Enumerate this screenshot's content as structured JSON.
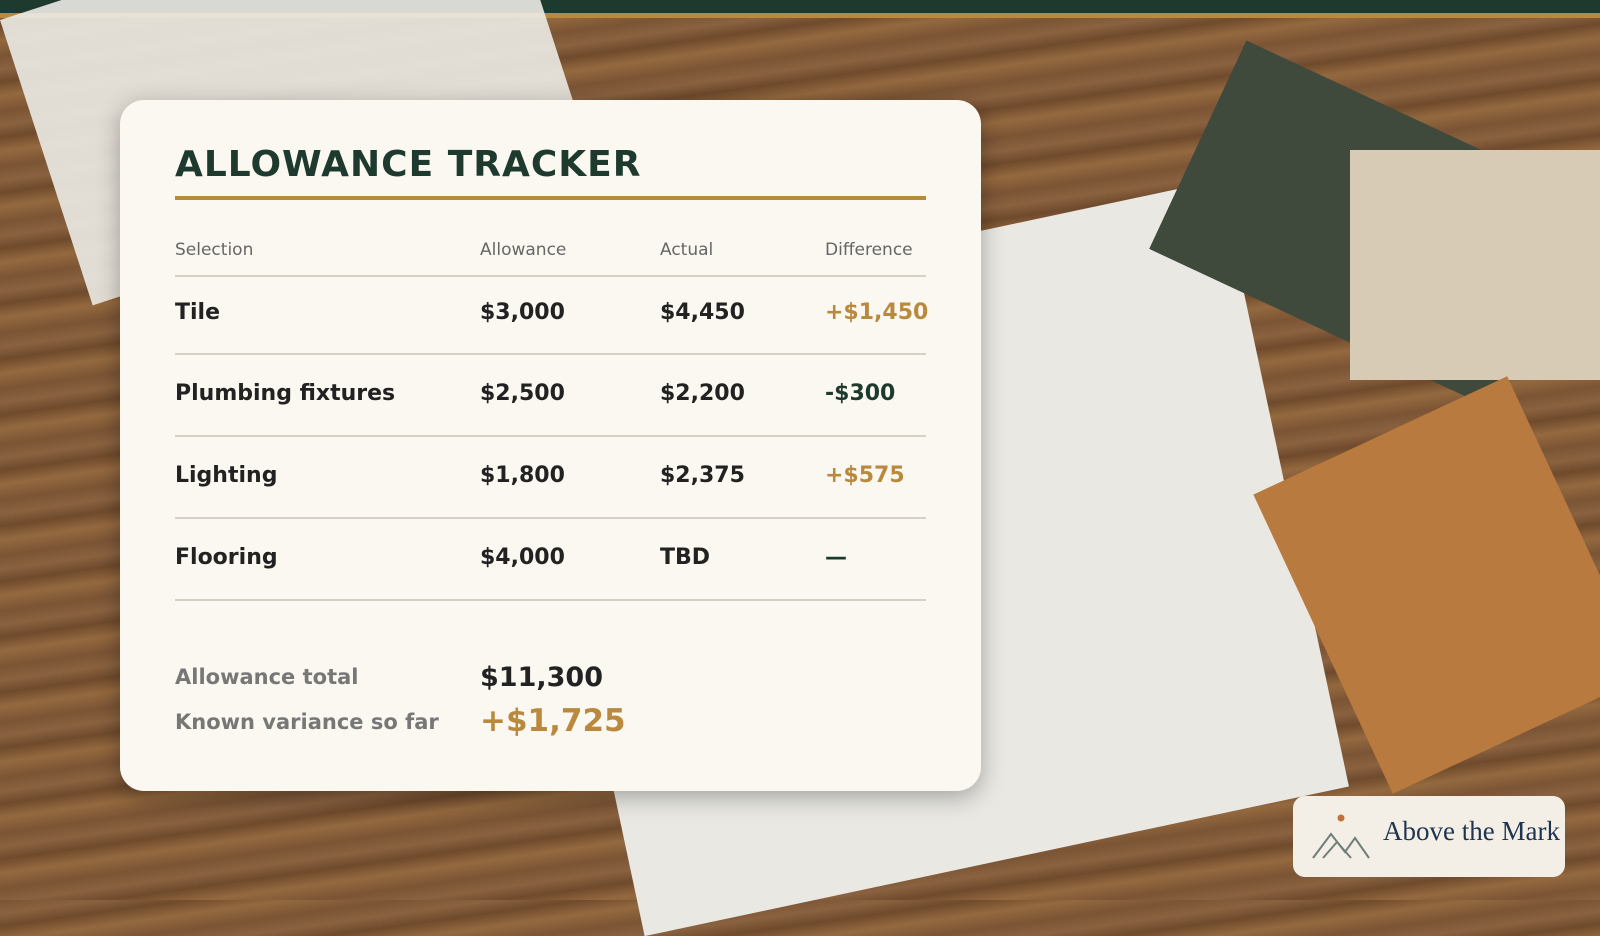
{
  "header": {
    "title": "ALLOWANCE TRACKER"
  },
  "table": {
    "columns": [
      "Selection",
      "Allowance",
      "Actual",
      "Difference"
    ],
    "rows": [
      [
        "Tile",
        "$3,000",
        "$4,450",
        "+$1,450"
      ],
      [
        "Plumbing fixtures",
        "$2,500",
        "$2,200",
        "-$300"
      ],
      [
        "Lighting",
        "$1,800",
        "$2,375",
        "+$575"
      ],
      [
        "Flooring",
        "$4,000",
        "TBD",
        "—"
      ]
    ]
  },
  "summary": [
    {
      "label": "Allowance total",
      "value": "$11,300"
    },
    {
      "label": "Known variance so far",
      "value": "+$1,725"
    }
  ],
  "logo": {
    "text": "Above the Mark"
  }
}
